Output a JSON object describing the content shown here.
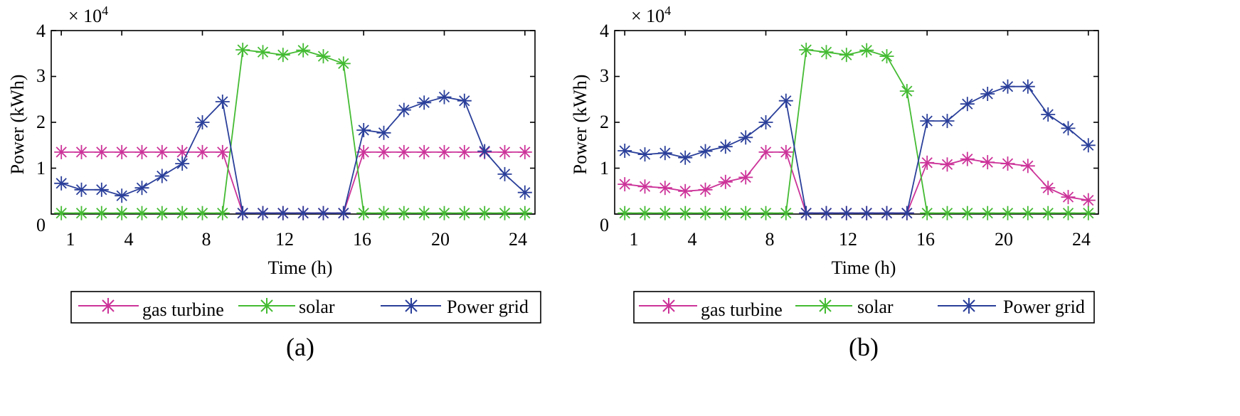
{
  "chart_data": [
    {
      "type": "line",
      "caption": "(a)",
      "exponent_label": "× 10",
      "exponent_power": "4",
      "xlabel": "Time (h)",
      "ylabel": "Power (kWh)",
      "xlim": [
        0.5,
        24.5
      ],
      "ylim": [
        0,
        4
      ],
      "xticks": [
        1,
        4,
        8,
        12,
        16,
        20,
        24
      ],
      "yticks": [
        0,
        1,
        2,
        3,
        4
      ],
      "x": [
        1,
        2,
        3,
        4,
        5,
        6,
        7,
        8,
        9,
        10,
        11,
        12,
        13,
        14,
        15,
        16,
        17,
        18,
        19,
        20,
        21,
        22,
        23,
        24
      ],
      "series": [
        {
          "name": "gas turbine",
          "color": "#cc3399",
          "values": [
            1.35,
            1.35,
            1.35,
            1.35,
            1.35,
            1.35,
            1.35,
            1.35,
            1.35,
            0.02,
            0.02,
            0.02,
            0.02,
            0.02,
            0.02,
            1.35,
            1.35,
            1.35,
            1.35,
            1.35,
            1.35,
            1.35,
            1.35,
            1.35
          ]
        },
        {
          "name": "solar",
          "color": "#44bb33",
          "values": [
            0.02,
            0.02,
            0.02,
            0.02,
            0.02,
            0.02,
            0.02,
            0.02,
            0.02,
            3.58,
            3.53,
            3.47,
            3.57,
            3.44,
            3.28,
            0.02,
            0.02,
            0.02,
            0.02,
            0.02,
            0.02,
            0.02,
            0.02,
            0.02
          ]
        },
        {
          "name": "Power grid",
          "color": "#2a3f9a",
          "values": [
            0.67,
            0.53,
            0.53,
            0.4,
            0.57,
            0.83,
            1.1,
            2.0,
            2.45,
            0.02,
            0.02,
            0.02,
            0.02,
            0.02,
            0.02,
            1.83,
            1.77,
            2.27,
            2.43,
            2.55,
            2.47,
            1.37,
            0.87,
            0.47
          ]
        }
      ],
      "legend": {
        "placement": "bottom",
        "labels": [
          "gas turbine",
          "solar",
          "Power grid"
        ]
      }
    },
    {
      "type": "line",
      "caption": "(b)",
      "exponent_label": "× 10",
      "exponent_power": "4",
      "xlabel": "Time (h)",
      "ylabel": "Power (kWh)",
      "xlim": [
        0.5,
        24.5
      ],
      "ylim": [
        0,
        4
      ],
      "xticks": [
        1,
        4,
        8,
        12,
        16,
        20,
        24
      ],
      "yticks": [
        0,
        1,
        2,
        3,
        4
      ],
      "x": [
        1,
        2,
        3,
        4,
        5,
        6,
        7,
        8,
        9,
        10,
        11,
        12,
        13,
        14,
        15,
        16,
        17,
        18,
        19,
        20,
        21,
        22,
        23,
        24
      ],
      "series": [
        {
          "name": "gas turbine",
          "color": "#cc3399",
          "values": [
            0.65,
            0.6,
            0.57,
            0.5,
            0.53,
            0.7,
            0.8,
            1.35,
            1.35,
            0.02,
            0.02,
            0.02,
            0.02,
            0.02,
            0.02,
            1.12,
            1.08,
            1.2,
            1.13,
            1.1,
            1.05,
            0.57,
            0.37,
            0.3
          ]
        },
        {
          "name": "solar",
          "color": "#44bb33",
          "values": [
            0.02,
            0.02,
            0.02,
            0.02,
            0.02,
            0.02,
            0.02,
            0.02,
            0.02,
            3.58,
            3.53,
            3.47,
            3.57,
            3.44,
            2.68,
            0.02,
            0.02,
            0.02,
            0.02,
            0.02,
            0.02,
            0.02,
            0.02,
            0.02
          ]
        },
        {
          "name": "Power grid",
          "color": "#2a3f9a",
          "values": [
            1.38,
            1.3,
            1.33,
            1.23,
            1.37,
            1.47,
            1.67,
            2.0,
            2.47,
            0.02,
            0.02,
            0.02,
            0.02,
            0.02,
            0.02,
            2.03,
            2.03,
            2.4,
            2.62,
            2.78,
            2.78,
            2.17,
            1.87,
            1.5
          ]
        }
      ],
      "legend": {
        "placement": "bottom",
        "labels": [
          "gas turbine",
          "solar",
          "Power grid"
        ]
      }
    }
  ]
}
